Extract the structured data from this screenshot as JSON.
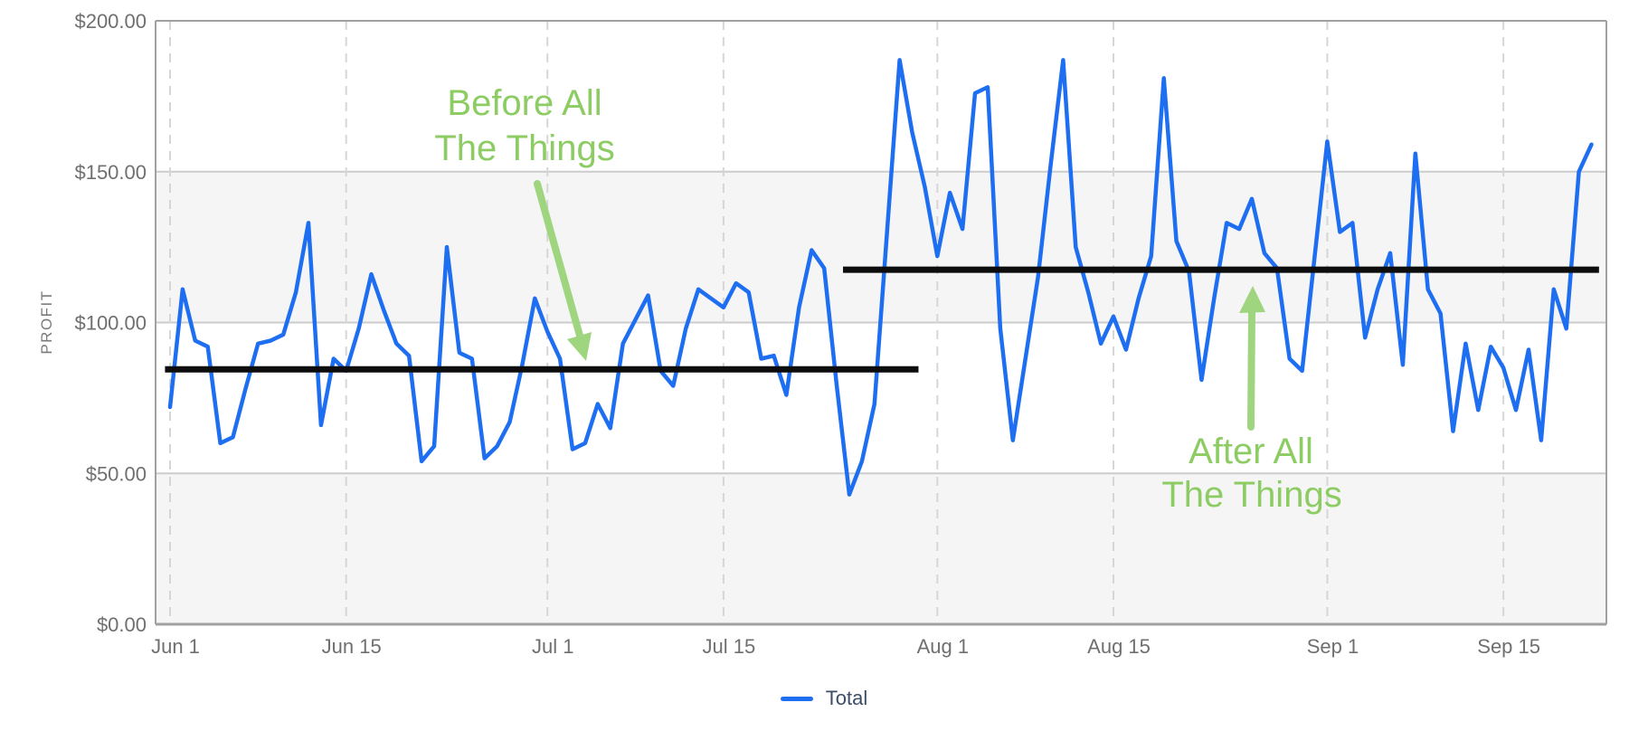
{
  "y_axis": {
    "title": "PROFIT",
    "ticks": [
      {
        "value": 0,
        "label": "$0.00"
      },
      {
        "value": 50,
        "label": "$50.00"
      },
      {
        "value": 100,
        "label": "$100.00"
      },
      {
        "value": 150,
        "label": "$150.00"
      },
      {
        "value": 200,
        "label": "$200.00"
      }
    ]
  },
  "x_axis": {
    "ticks": [
      {
        "day": 0,
        "label": "Jun 1"
      },
      {
        "day": 14,
        "label": "Jun 15"
      },
      {
        "day": 30,
        "label": "Jul 1"
      },
      {
        "day": 44,
        "label": "Jul 15"
      },
      {
        "day": 61,
        "label": "Aug 1"
      },
      {
        "day": 75,
        "label": "Aug 15"
      },
      {
        "day": 92,
        "label": "Sep 1"
      },
      {
        "day": 106,
        "label": "Sep 15"
      }
    ]
  },
  "legend": {
    "label": "Total"
  },
  "annotations": {
    "before": {
      "line1": "Before All",
      "line2": "The Things"
    },
    "after": {
      "line1": "After All",
      "line2": "The Things"
    }
  },
  "colors": {
    "series": "#1e6ef2",
    "mean_line": "#0d0d0d",
    "annotation_text": "#8ccc63",
    "annotation_arrow": "#9fd57f",
    "band_gray": "#f5f5f5",
    "h_gridline": "#cccccc",
    "v_dashed": "#d6d6d6",
    "plot_border": "#a0a0a0",
    "tick_text": "#6f6f6f",
    "legend_text": "#3c4d68"
  },
  "chart_data": {
    "type": "line",
    "title": "",
    "xlabel": "",
    "ylabel": "PROFIT",
    "ylim": [
      0,
      200
    ],
    "y_tick_step": 50,
    "grid": "horizontal-solid, vertical-dashed-at-date-ticks, alternating-gray-bands",
    "legend_position": "bottom-center",
    "frequency": "daily",
    "start_date": "Jun 1",
    "end_date": "Sep 22",
    "series": [
      {
        "name": "Total",
        "color": "#1e6ef2",
        "values": [
          72,
          111,
          94,
          92,
          60,
          62,
          78,
          93,
          94,
          96,
          110,
          133,
          66,
          88,
          84,
          98,
          116,
          104,
          93,
          89,
          54,
          59,
          125,
          90,
          88,
          55,
          59,
          67,
          86,
          108,
          97,
          88,
          58,
          60,
          73,
          65,
          93,
          101,
          109,
          84,
          79,
          98,
          111,
          108,
          105,
          113,
          110,
          88,
          89,
          76,
          105,
          124,
          118,
          79,
          43,
          54,
          73,
          130,
          187,
          163,
          145,
          122,
          143,
          131,
          176,
          178,
          98,
          61,
          88,
          115,
          152,
          187,
          125,
          110,
          93,
          102,
          91,
          108,
          122,
          181,
          127,
          117,
          81,
          108,
          133,
          131,
          141,
          123,
          118,
          88,
          84,
          122,
          160,
          130,
          133,
          95,
          111,
          123,
          86,
          156,
          111,
          103,
          64,
          93,
          71,
          92,
          85,
          71,
          91,
          61,
          111,
          98,
          150,
          159
        ]
      }
    ],
    "mean_lines": [
      {
        "label": "Before All The Things",
        "value": 84.5,
        "from_day": -0.4,
        "to_day": 59.5
      },
      {
        "label": "After All The Things",
        "value": 117.5,
        "from_day": 53.5,
        "to_day": 113.6
      }
    ]
  }
}
